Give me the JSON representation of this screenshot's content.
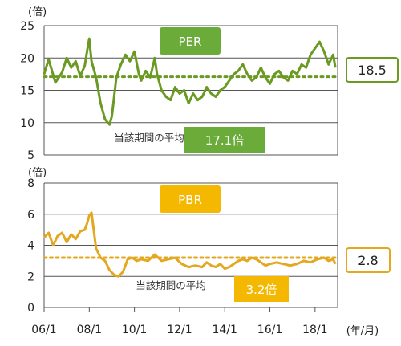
{
  "chart_data": [
    {
      "type": "line",
      "unit_label": "(倍)",
      "legend_label": "PER",
      "ylim": [
        5,
        25
      ],
      "yticks": [
        5,
        10,
        15,
        20,
        25
      ],
      "grid": true,
      "color": "#6a9a22",
      "label_color": "#6aab3a",
      "current_value_label": "18.5",
      "average": 17.1,
      "average_caption": "当該期間の平均",
      "average_value_label": "17.1倍",
      "series": [
        {
          "x": [
            2006.0,
            2006.2,
            2006.5,
            2006.8,
            2007.0,
            2007.2,
            2007.4,
            2007.6,
            2007.8,
            2007.9,
            2008.0,
            2008.1,
            2008.3,
            2008.5,
            2008.7,
            2008.9,
            2009.0,
            2009.2,
            2009.4,
            2009.6,
            2009.8,
            2010.0,
            2010.2,
            2010.3,
            2010.5,
            2010.7,
            2010.9,
            2011.0,
            2011.2,
            2011.4,
            2011.6,
            2011.8,
            2012.0,
            2012.2,
            2012.4,
            2012.6,
            2012.8,
            2013.0,
            2013.2,
            2013.4,
            2013.6,
            2013.8,
            2014.0,
            2014.2,
            2014.4,
            2014.6,
            2014.8,
            2015.0,
            2015.2,
            2015.4,
            2015.6,
            2015.8,
            2016.0,
            2016.2,
            2016.4,
            2016.6,
            2016.8,
            2017.0,
            2017.2,
            2017.4,
            2017.6,
            2017.8,
            2018.0,
            2018.2,
            2018.4,
            2018.6,
            2018.8,
            2018.9
          ],
          "values": [
            17.5,
            19.8,
            16.2,
            17.8,
            20.0,
            18.5,
            19.5,
            17.2,
            18.8,
            21.0,
            23.0,
            19.5,
            17.0,
            13.0,
            10.5,
            9.7,
            11.0,
            17.0,
            19.0,
            20.5,
            19.5,
            21.0,
            17.5,
            16.5,
            18.0,
            17.0,
            20.0,
            17.5,
            15.0,
            14.0,
            13.5,
            15.5,
            14.5,
            15.0,
            13.0,
            14.5,
            13.5,
            14.0,
            15.5,
            14.5,
            14.0,
            15.0,
            15.5,
            16.5,
            17.5,
            18.0,
            19.0,
            17.5,
            16.5,
            17.0,
            18.5,
            17.0,
            16.0,
            17.5,
            18.0,
            17.0,
            16.5,
            18.0,
            17.5,
            19.0,
            18.5,
            20.5,
            21.5,
            22.5,
            21.0,
            19.0,
            20.5,
            18.5
          ]
        }
      ]
    },
    {
      "type": "line",
      "unit_label": "(倍)",
      "legend_label": "PBR",
      "ylim": [
        0,
        8
      ],
      "yticks": [
        0,
        2,
        4,
        6,
        8
      ],
      "grid": true,
      "color": "#e4a820",
      "label_color": "#f5b800",
      "current_value_label": "2.8",
      "average": 3.2,
      "average_caption": "当該期間の平均",
      "average_value_label": "3.2倍",
      "xlabel": "(年/月)",
      "categories": [
        "06/1",
        "08/1",
        "10/1",
        "12/1",
        "14/1",
        "16/1",
        "18/1"
      ],
      "series": [
        {
          "x": [
            2006.0,
            2006.2,
            2006.4,
            2006.6,
            2006.8,
            2007.0,
            2007.2,
            2007.4,
            2007.6,
            2007.8,
            2007.9,
            2008.0,
            2008.1,
            2008.3,
            2008.5,
            2008.7,
            2008.9,
            2009.1,
            2009.3,
            2009.5,
            2009.7,
            2009.9,
            2010.1,
            2010.3,
            2010.6,
            2010.9,
            2011.2,
            2011.5,
            2011.8,
            2012.1,
            2012.4,
            2012.7,
            2013.0,
            2013.2,
            2013.4,
            2013.6,
            2013.8,
            2014.0,
            2014.2,
            2014.4,
            2014.6,
            2014.8,
            2015.0,
            2015.2,
            2015.4,
            2015.6,
            2015.8,
            2016.0,
            2016.3,
            2016.6,
            2016.9,
            2017.2,
            2017.5,
            2017.8,
            2018.1,
            2018.4,
            2018.6,
            2018.8,
            2018.9
          ],
          "values": [
            4.5,
            4.8,
            4.0,
            4.6,
            4.8,
            4.2,
            4.7,
            4.4,
            4.9,
            5.0,
            5.4,
            5.9,
            6.1,
            3.8,
            3.2,
            3.0,
            2.4,
            2.1,
            2.0,
            2.3,
            3.1,
            3.2,
            3.0,
            3.1,
            3.0,
            3.4,
            3.0,
            3.1,
            3.2,
            2.8,
            2.6,
            2.7,
            2.6,
            2.9,
            2.7,
            2.6,
            2.8,
            2.5,
            2.6,
            2.8,
            3.0,
            3.1,
            3.0,
            3.2,
            3.1,
            2.9,
            2.7,
            2.8,
            2.9,
            2.8,
            2.7,
            2.8,
            3.0,
            2.9,
            3.1,
            3.2,
            3.0,
            3.1,
            2.8
          ]
        }
      ]
    }
  ]
}
